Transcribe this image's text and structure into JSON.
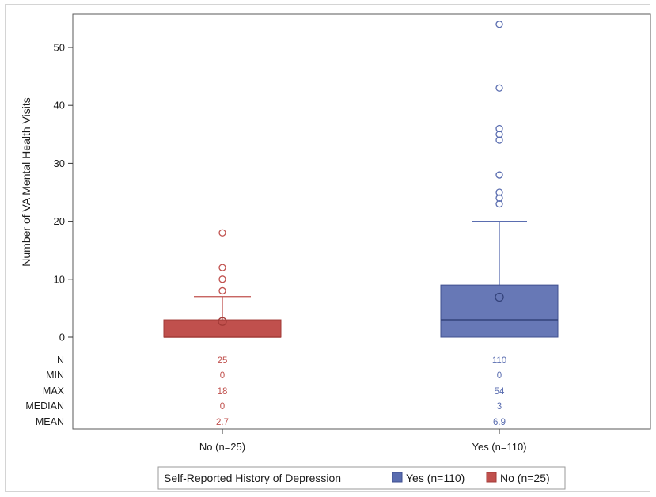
{
  "chart_data": {
    "type": "box",
    "ylabel": "Number of VA Mental Health Visits",
    "ylim": [
      0,
      55
    ],
    "yticks": [
      0,
      10,
      20,
      30,
      40,
      50
    ],
    "grid": false,
    "legend_position": "bottom",
    "legend_title": "Self-Reported History of Depression",
    "categories": [
      "No (n=25)",
      "Yes (n=110)"
    ],
    "series": [
      {
        "name": "No (n=25)",
        "category": "No (n=25)",
        "color": "#c0504d",
        "q1": 0,
        "median": 0,
        "q3": 3,
        "whisker_low": 0,
        "whisker_high": 7,
        "mean": 2.7,
        "outliers": [
          8,
          10,
          12,
          18
        ]
      },
      {
        "name": "Yes (n=110)",
        "category": "Yes (n=110)",
        "color": "#5a6db0",
        "q1": 0,
        "median": 3,
        "q3": 9,
        "whisker_low": 0,
        "whisker_high": 20,
        "mean": 6.9,
        "outliers": [
          23,
          24,
          25,
          28,
          28,
          34,
          35,
          36,
          43,
          54
        ]
      }
    ],
    "legend_order": [
      "Yes (n=110)",
      "No (n=25)"
    ],
    "stats_table": {
      "rows": [
        "N",
        "MIN",
        "MAX",
        "MEDIAN",
        "MEAN"
      ],
      "values": [
        [
          "25",
          "0",
          "18",
          "0",
          "2.7"
        ],
        [
          "110",
          "0",
          "54",
          "3",
          "6.9"
        ]
      ]
    }
  }
}
